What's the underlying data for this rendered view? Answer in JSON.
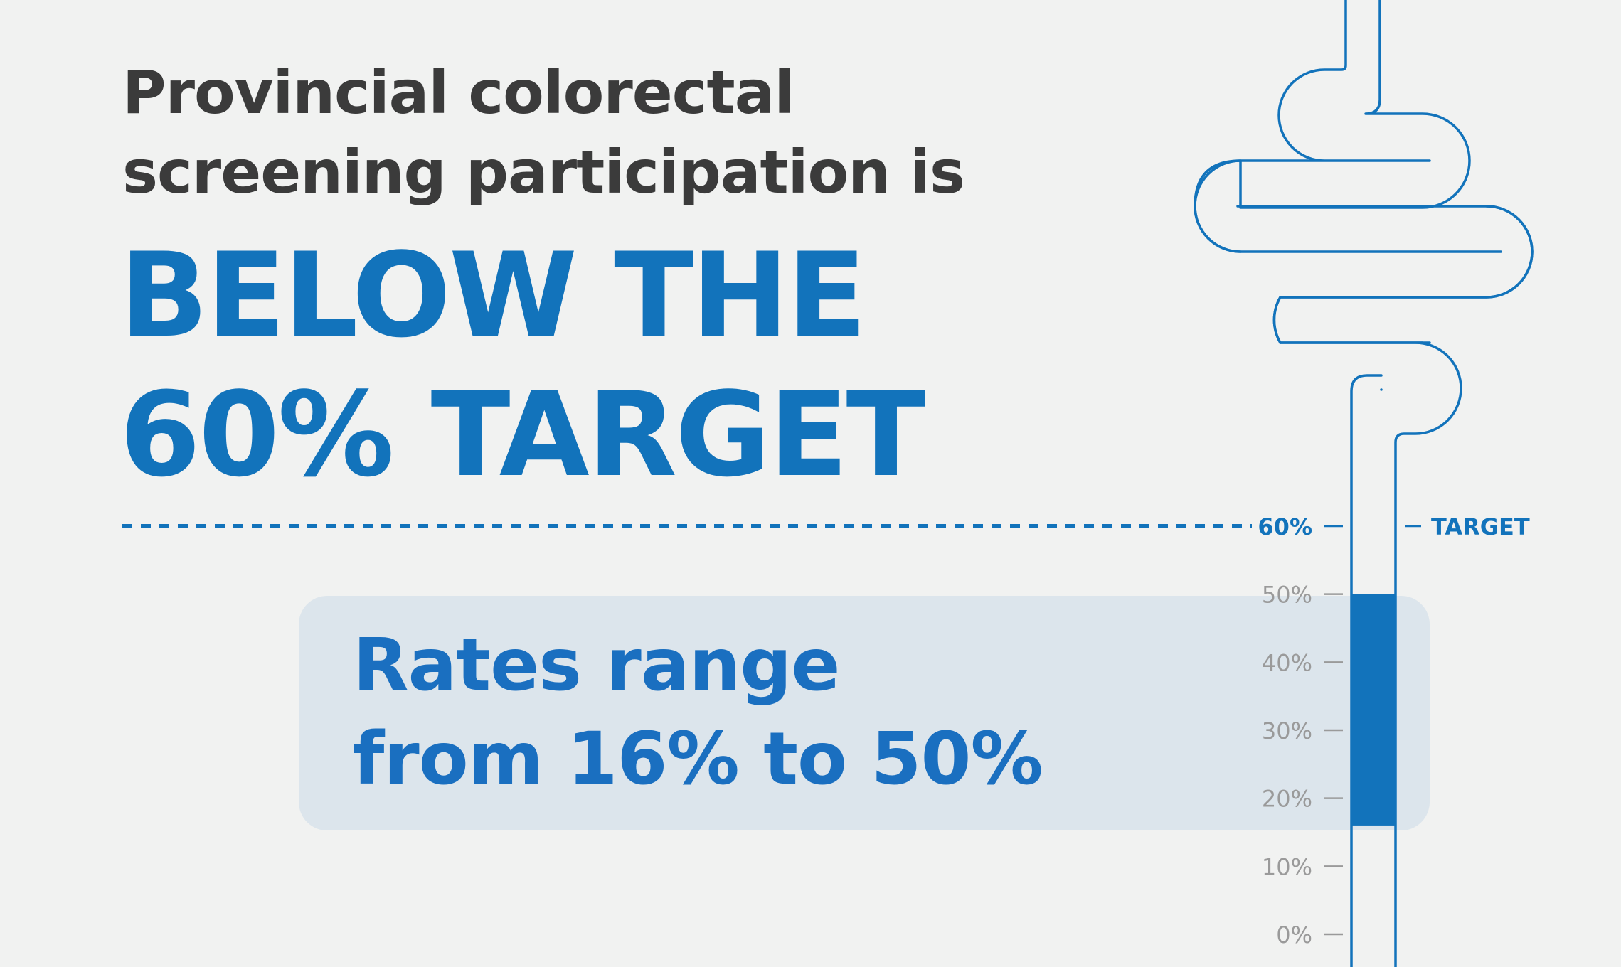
{
  "headline": {
    "line1": "Provincial colorectal",
    "line2": "screening participation is",
    "emphasis_line1": "BELOW THE",
    "emphasis_line2": "60% TARGET"
  },
  "callout": {
    "line1": "Rates range",
    "line2": "from 16% to 50%"
  },
  "colors": {
    "background": "#f1f2f1",
    "dark_text": "#3b3b3b",
    "brand_blue": "#1273bb",
    "callout_bg": "#dce5ec",
    "tick_grey": "#9a9a9a"
  },
  "chart_data": {
    "type": "bar",
    "orientation": "vertical",
    "ylim": [
      0,
      60
    ],
    "ticks": [
      {
        "value": 0,
        "label": "0%"
      },
      {
        "value": 10,
        "label": "10%"
      },
      {
        "value": 20,
        "label": "20%"
      },
      {
        "value": 30,
        "label": "30%"
      },
      {
        "value": 40,
        "label": "40%"
      },
      {
        "value": 50,
        "label": "50%"
      },
      {
        "value": 60,
        "label": "60%"
      }
    ],
    "range": {
      "low": 16,
      "high": 50
    },
    "target": {
      "value": 60,
      "label": "TARGET"
    }
  }
}
